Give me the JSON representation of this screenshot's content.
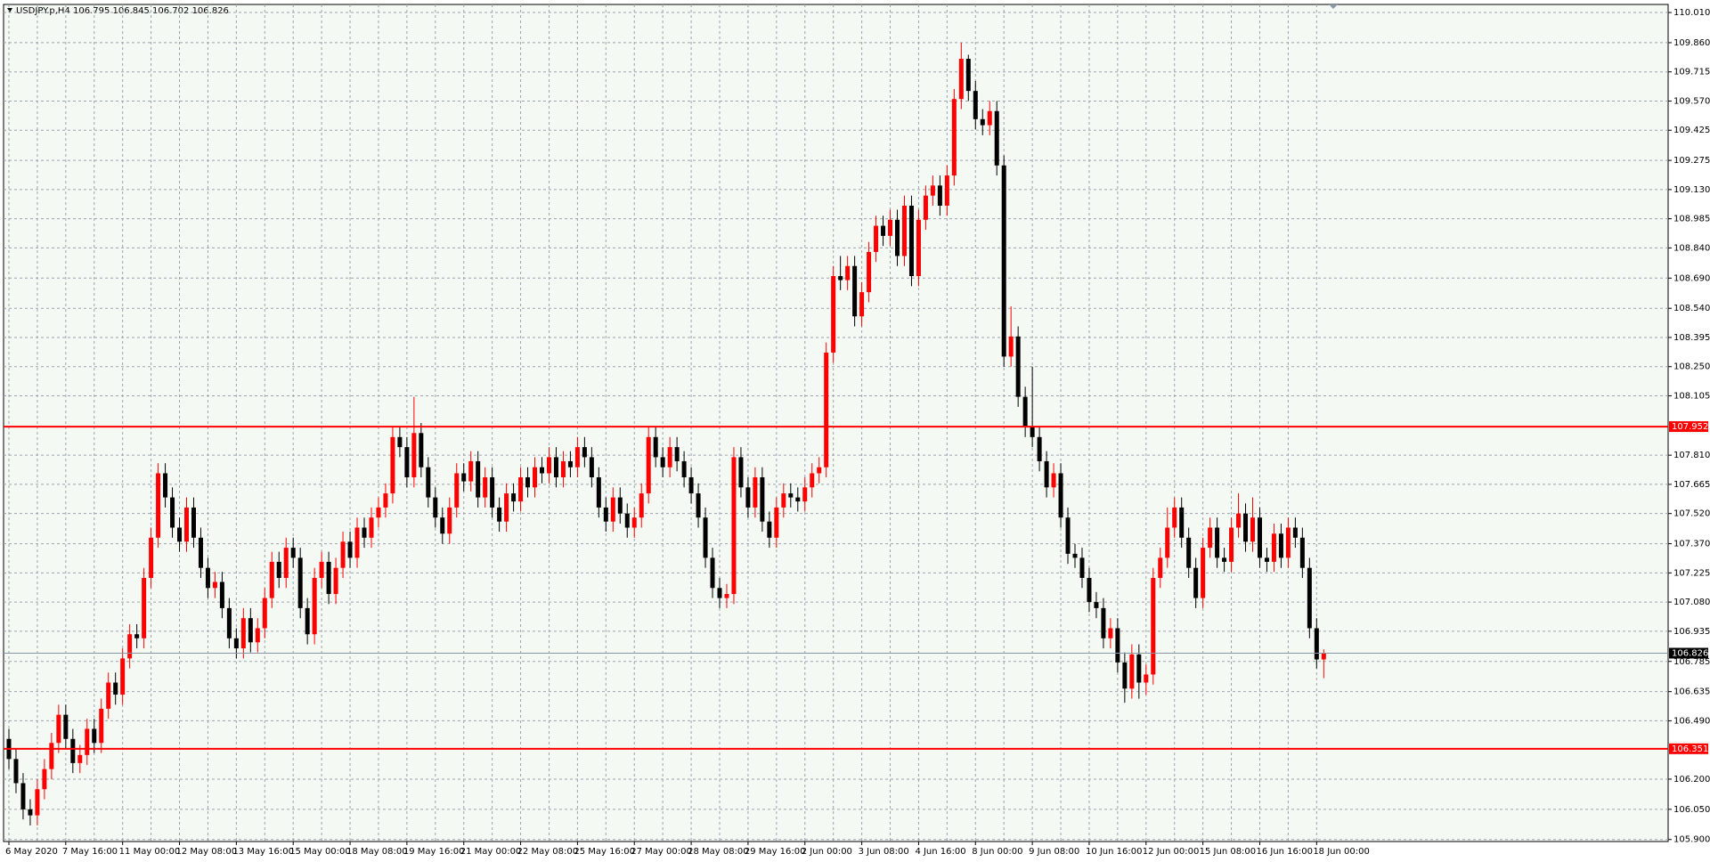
{
  "chart_data": {
    "type": "candlestick",
    "title": "USDJPY.p,H4  106.795 106.845 106.702 106.826",
    "up_color": "#ff0000",
    "down_color": "#000000",
    "grid": true,
    "ylim": [
      105.89,
      110.05
    ],
    "yticks": [
      {
        "value": 110.01,
        "label": "110.010"
      },
      {
        "value": 109.86,
        "label": "109.860"
      },
      109.715,
      {
        "value": 109.57,
        "label": "109.570"
      },
      109.425,
      109.275,
      {
        "value": 109.13,
        "label": "109.130"
      },
      108.985,
      {
        "value": 108.84,
        "label": "108.840"
      },
      {
        "value": 108.69,
        "label": "108.690"
      },
      {
        "value": 108.54,
        "label": "108.540"
      },
      108.395,
      {
        "value": 108.25,
        "label": "108.250"
      },
      108.105,
      {
        "value": 107.81,
        "label": "107.810"
      },
      107.665,
      {
        "value": 107.52,
        "label": "107.520"
      },
      {
        "value": 107.37,
        "label": "107.370"
      },
      107.225,
      {
        "value": 107.08,
        "label": "107.080"
      },
      106.935,
      106.785,
      106.635,
      {
        "value": 106.49,
        "label": "106.490"
      },
      {
        "value": 106.2,
        "label": "106.200"
      },
      {
        "value": 106.05,
        "label": "106.050"
      },
      {
        "value": 105.9,
        "label": "105.900"
      }
    ],
    "levels": [
      {
        "value": 107.952,
        "color": "#ff0000"
      },
      {
        "value": 106.351,
        "color": "#ff0000"
      }
    ],
    "last_price": 106.826,
    "categories": [
      "6 May 2020",
      null,
      null,
      null,
      null,
      null,
      null,
      null,
      "7 May 16:00",
      null,
      null,
      null,
      null,
      null,
      null,
      null,
      "11 May 00:00",
      null,
      null,
      null,
      null,
      null,
      null,
      null,
      "12 May 08:00",
      null,
      null,
      null,
      null,
      null,
      null,
      null,
      "13 May 16:00",
      null,
      null,
      null,
      null,
      null,
      null,
      null,
      "15 May 00:00",
      null,
      null,
      null,
      null,
      null,
      null,
      null,
      "18 May 08:00",
      null,
      null,
      null,
      null,
      null,
      null,
      null,
      "19 May 16:00",
      null,
      null,
      null,
      null,
      null,
      null,
      null,
      "21 May 00:00",
      null,
      null,
      null,
      null,
      null,
      null,
      null,
      "22 May 08:00",
      null,
      null,
      null,
      null,
      null,
      null,
      null,
      "25 May 16:00",
      null,
      null,
      null,
      null,
      null,
      null,
      null,
      "27 May 00:00",
      null,
      null,
      null,
      null,
      null,
      null,
      null,
      "28 May 08:00",
      null,
      null,
      null,
      null,
      null,
      null,
      null,
      "29 May 16:00",
      null,
      null,
      null,
      null,
      null,
      null,
      null,
      "2 Jun 00:00",
      null,
      null,
      null,
      null,
      null,
      null,
      null,
      "3 Jun 08:00",
      null,
      null,
      null,
      null,
      null,
      null,
      null,
      "4 Jun 16:00",
      null,
      null,
      null,
      null,
      null,
      null,
      null,
      "8 Jun 00:00",
      null,
      null,
      null,
      null,
      null,
      null,
      null,
      "9 Jun 08:00",
      null,
      null,
      null,
      null,
      null,
      null,
      null,
      "10 Jun 16:00",
      null,
      null,
      null,
      null,
      null,
      null,
      null,
      "12 Jun 00:00",
      null,
      null,
      null,
      null,
      null,
      null,
      null,
      "15 Jun 08:00",
      null,
      null,
      null,
      null,
      null,
      null,
      null,
      "16 Jun 16:00",
      null,
      null,
      null,
      null,
      null,
      null,
      null,
      "18 Jun 00:00",
      null
    ],
    "open": [
      106.4,
      106.3,
      106.18,
      106.05,
      106.02,
      106.15,
      106.25,
      106.38,
      106.52,
      106.4,
      106.28,
      106.32,
      106.45,
      106.38,
      106.55,
      106.68,
      106.62,
      106.8,
      106.92,
      106.9,
      107.2,
      107.4,
      107.72,
      107.6,
      107.45,
      107.38,
      107.55,
      107.4,
      107.25,
      107.15,
      107.18,
      107.05,
      106.9,
      106.85,
      107.0,
      106.88,
      106.95,
      107.1,
      107.28,
      107.2,
      107.35,
      107.3,
      107.05,
      106.92,
      107.2,
      107.28,
      107.12,
      107.25,
      107.38,
      107.3,
      107.45,
      107.4,
      107.5,
      107.55,
      107.62,
      107.9,
      107.85,
      107.7,
      107.92,
      107.75,
      107.6,
      107.5,
      107.42,
      107.55,
      107.72,
      107.68,
      107.78,
      107.6,
      107.7,
      107.55,
      107.48,
      107.62,
      107.58,
      107.7,
      107.65,
      107.75,
      107.72,
      107.8,
      107.7,
      107.78,
      107.75,
      107.85,
      107.8,
      107.7,
      107.55,
      107.48,
      107.6,
      107.52,
      107.45,
      107.5,
      107.62,
      107.9,
      107.8,
      107.75,
      107.85,
      107.78,
      107.7,
      107.62,
      107.5,
      107.3,
      107.15,
      107.1,
      107.12,
      107.8,
      107.65,
      107.55,
      107.7,
      107.48,
      107.4,
      107.55,
      107.62,
      107.6,
      107.58,
      107.65,
      107.72,
      107.75,
      108.32,
      108.7,
      108.68,
      108.75,
      108.5,
      108.62,
      108.82,
      108.95,
      108.9,
      108.98,
      108.8,
      109.05,
      108.7,
      108.98,
      109.1,
      109.15,
      109.05,
      109.2,
      109.58,
      109.78,
      109.62,
      109.48,
      109.45,
      109.52,
      109.25,
      108.3,
      108.4,
      108.1,
      107.95,
      107.9,
      107.78,
      107.65,
      107.72,
      107.5,
      107.32,
      107.3,
      107.2,
      107.08,
      107.05,
      106.9,
      106.95,
      106.78,
      106.65,
      106.82,
      106.68,
      106.72,
      107.2,
      107.3,
      107.45,
      107.55,
      107.4,
      107.25,
      107.1,
      107.35,
      107.45,
      107.3,
      107.28,
      107.45,
      107.52,
      107.38,
      107.5,
      107.3,
      107.28,
      107.42,
      107.3,
      107.45,
      107.4,
      107.25,
      106.95,
      106.795
    ],
    "high": [
      106.45,
      106.35,
      106.23,
      106.1,
      106.2,
      106.3,
      106.43,
      106.57,
      106.57,
      106.45,
      106.37,
      106.5,
      106.5,
      106.6,
      106.73,
      106.73,
      106.85,
      106.97,
      106.97,
      107.25,
      107.45,
      107.77,
      107.77,
      107.65,
      107.5,
      107.6,
      107.6,
      107.45,
      107.3,
      107.23,
      107.23,
      107.1,
      106.95,
      107.05,
      107.05,
      107.0,
      107.15,
      107.33,
      107.33,
      107.4,
      107.4,
      107.35,
      107.1,
      107.25,
      107.33,
      107.33,
      107.3,
      107.43,
      107.43,
      107.5,
      107.5,
      107.55,
      107.6,
      107.67,
      107.95,
      107.95,
      107.9,
      108.1,
      107.97,
      107.8,
      107.65,
      107.55,
      107.6,
      107.77,
      107.77,
      107.83,
      107.83,
      107.75,
      107.75,
      107.6,
      107.67,
      107.67,
      107.75,
      107.75,
      107.8,
      107.8,
      107.85,
      107.85,
      107.83,
      107.83,
      107.9,
      107.9,
      107.85,
      107.75,
      107.6,
      107.65,
      107.65,
      107.57,
      107.55,
      107.67,
      107.95,
      107.95,
      107.85,
      107.9,
      107.9,
      107.83,
      107.75,
      107.67,
      107.55,
      107.35,
      107.2,
      107.17,
      107.85,
      107.85,
      107.7,
      107.75,
      107.75,
      107.53,
      107.6,
      107.67,
      107.67,
      107.65,
      107.7,
      107.77,
      107.8,
      108.37,
      108.75,
      108.8,
      108.8,
      108.8,
      108.67,
      108.87,
      109.0,
      109.0,
      109.03,
      109.03,
      109.1,
      109.1,
      109.03,
      109.15,
      109.2,
      109.2,
      109.25,
      109.63,
      109.86,
      109.8,
      109.67,
      109.53,
      109.57,
      109.57,
      109.3,
      108.55,
      108.45,
      108.15,
      108.25,
      107.95,
      107.83,
      107.77,
      107.77,
      107.55,
      107.37,
      107.35,
      107.25,
      107.13,
      107.1,
      107.0,
      107.0,
      106.83,
      106.87,
      106.87,
      106.77,
      107.25,
      107.35,
      107.55,
      107.6,
      107.6,
      107.45,
      107.3,
      107.4,
      107.5,
      107.5,
      107.35,
      107.5,
      107.62,
      107.57,
      107.6,
      107.55,
      107.35,
      107.47,
      107.47,
      107.5,
      107.5,
      107.45,
      107.3,
      107.0,
      106.845
    ],
    "low": [
      106.25,
      106.13,
      106.0,
      105.97,
      105.97,
      106.1,
      106.2,
      106.33,
      106.35,
      106.23,
      106.23,
      106.27,
      106.33,
      106.33,
      106.5,
      106.57,
      106.57,
      106.75,
      106.85,
      106.85,
      107.15,
      107.35,
      107.55,
      107.4,
      107.33,
      107.33,
      107.35,
      107.2,
      107.1,
      107.1,
      107.0,
      106.85,
      106.8,
      106.8,
      106.83,
      106.83,
      106.9,
      107.05,
      107.15,
      107.15,
      107.25,
      107.0,
      106.87,
      106.87,
      107.15,
      107.07,
      107.07,
      107.2,
      107.25,
      107.25,
      107.35,
      107.35,
      107.45,
      107.5,
      107.57,
      107.8,
      107.65,
      107.65,
      107.7,
      107.55,
      107.45,
      107.37,
      107.37,
      107.5,
      107.63,
      107.63,
      107.55,
      107.55,
      107.5,
      107.43,
      107.43,
      107.53,
      107.53,
      107.6,
      107.6,
      107.67,
      107.67,
      107.65,
      107.65,
      107.7,
      107.7,
      107.75,
      107.65,
      107.5,
      107.43,
      107.43,
      107.47,
      107.4,
      107.4,
      107.45,
      107.57,
      107.75,
      107.7,
      107.7,
      107.73,
      107.65,
      107.57,
      107.45,
      107.25,
      107.1,
      107.05,
      107.05,
      107.07,
      107.6,
      107.5,
      107.5,
      107.43,
      107.35,
      107.35,
      107.5,
      107.55,
      107.53,
      107.53,
      107.6,
      107.67,
      107.7,
      108.27,
      108.63,
      108.63,
      108.45,
      108.45,
      108.57,
      108.77,
      108.85,
      108.85,
      108.75,
      108.75,
      108.65,
      108.65,
      108.93,
      109.05,
      109.0,
      109.0,
      109.15,
      109.53,
      109.57,
      109.43,
      109.4,
      109.4,
      109.2,
      108.25,
      108.25,
      108.05,
      107.9,
      107.85,
      107.73,
      107.6,
      107.6,
      107.45,
      107.27,
      107.25,
      107.15,
      107.03,
      107.0,
      106.85,
      106.85,
      106.73,
      106.58,
      106.6,
      106.6,
      106.62,
      106.67,
      107.15,
      107.25,
      107.4,
      107.35,
      107.2,
      107.05,
      107.05,
      107.3,
      107.25,
      107.23,
      107.23,
      107.4,
      107.33,
      107.33,
      107.25,
      107.23,
      107.23,
      107.25,
      107.25,
      107.35,
      107.2,
      106.9,
      106.75,
      106.702
    ],
    "close": [
      106.3,
      106.18,
      106.05,
      106.02,
      106.15,
      106.25,
      106.38,
      106.52,
      106.4,
      106.28,
      106.32,
      106.45,
      106.38,
      106.55,
      106.68,
      106.62,
      106.8,
      106.92,
      106.9,
      107.2,
      107.4,
      107.72,
      107.6,
      107.45,
      107.38,
      107.55,
      107.4,
      107.25,
      107.15,
      107.18,
      107.05,
      106.9,
      106.85,
      107.0,
      106.88,
      106.95,
      107.1,
      107.28,
      107.2,
      107.35,
      107.3,
      107.05,
      106.92,
      107.2,
      107.28,
      107.12,
      107.25,
      107.38,
      107.3,
      107.45,
      107.4,
      107.5,
      107.55,
      107.62,
      107.9,
      107.85,
      107.7,
      107.92,
      107.75,
      107.6,
      107.5,
      107.42,
      107.55,
      107.72,
      107.68,
      107.78,
      107.6,
      107.7,
      107.55,
      107.48,
      107.62,
      107.58,
      107.7,
      107.65,
      107.75,
      107.72,
      107.8,
      107.7,
      107.78,
      107.75,
      107.85,
      107.8,
      107.7,
      107.55,
      107.48,
      107.6,
      107.52,
      107.45,
      107.5,
      107.62,
      107.9,
      107.8,
      107.75,
      107.85,
      107.78,
      107.7,
      107.62,
      107.5,
      107.3,
      107.15,
      107.1,
      107.12,
      107.8,
      107.65,
      107.55,
      107.7,
      107.48,
      107.4,
      107.55,
      107.62,
      107.6,
      107.58,
      107.65,
      107.72,
      107.75,
      108.32,
      108.7,
      108.68,
      108.75,
      108.5,
      108.62,
      108.82,
      108.95,
      108.9,
      108.98,
      108.8,
      109.05,
      108.7,
      108.98,
      109.1,
      109.15,
      109.05,
      109.2,
      109.58,
      109.78,
      109.62,
      109.48,
      109.45,
      109.52,
      109.25,
      108.3,
      108.4,
      108.1,
      107.95,
      107.9,
      107.78,
      107.65,
      107.72,
      107.5,
      107.32,
      107.3,
      107.2,
      107.08,
      107.05,
      106.9,
      106.95,
      106.78,
      106.65,
      106.82,
      106.68,
      106.72,
      107.2,
      107.3,
      107.45,
      107.55,
      107.4,
      107.25,
      107.1,
      107.35,
      107.45,
      107.3,
      107.28,
      107.45,
      107.52,
      107.38,
      107.5,
      107.3,
      107.28,
      107.42,
      107.3,
      107.45,
      107.4,
      107.25,
      106.95,
      106.795,
      106.826
    ]
  }
}
